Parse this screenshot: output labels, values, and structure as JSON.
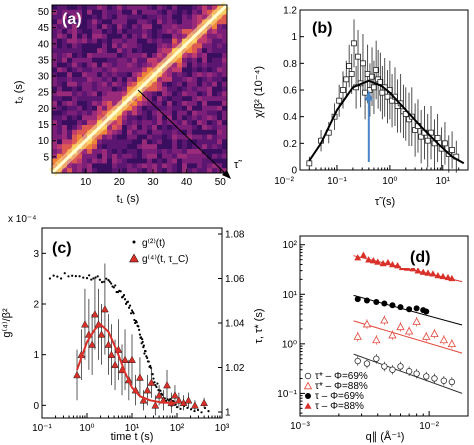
{
  "chart_data": [
    {
      "panel": "(a)",
      "type": "heatmap",
      "xlabel": "t₁ (s)",
      "ylabel": "t₂ (s)",
      "xlim": [
        0,
        52
      ],
      "ylim": [
        0,
        52
      ],
      "xticks": [
        10,
        20,
        30,
        40,
        50
      ],
      "yticks": [
        5,
        10,
        15,
        20,
        25,
        30,
        35,
        40,
        45,
        50
      ],
      "arrow_label": "τ̃",
      "colors": {
        "low": "#2a0a52",
        "mid": "#b02478",
        "high": "#f3c23a",
        "diag": "#ffffc8"
      }
    },
    {
      "panel": "(b)",
      "type": "scatter",
      "xscale": "log",
      "xlim": [
        0.02,
        30
      ],
      "ylim": [
        0,
        1.2
      ],
      "xlabel": "τ̃ (s)",
      "ylabel": "χ/β² (10⁻⁴)",
      "xtick_labels": [
        "10⁻²",
        "10⁻¹",
        "10⁰",
        "10¹"
      ],
      "yticks": [
        "0",
        "0.2",
        "0.4",
        "0.6",
        "0.8",
        "1",
        "1.2"
      ],
      "points": [
        [
          0.03,
          0.05,
          0.05
        ],
        [
          0.05,
          0.22,
          0.08
        ],
        [
          0.07,
          0.28,
          0.08
        ],
        [
          0.09,
          0.4,
          0.1
        ],
        [
          0.11,
          0.52,
          0.12
        ],
        [
          0.13,
          0.6,
          0.14
        ],
        [
          0.15,
          0.68,
          0.14
        ],
        [
          0.17,
          0.78,
          0.16
        ],
        [
          0.19,
          0.72,
          0.15
        ],
        [
          0.21,
          0.95,
          0.18
        ],
        [
          0.23,
          0.62,
          0.16
        ],
        [
          0.25,
          0.85,
          0.2
        ],
        [
          0.28,
          0.65,
          0.18
        ],
        [
          0.31,
          0.8,
          0.22
        ],
        [
          0.34,
          0.58,
          0.2
        ],
        [
          0.38,
          0.72,
          0.22
        ],
        [
          0.42,
          0.6,
          0.2
        ],
        [
          0.46,
          0.7,
          0.22
        ],
        [
          0.5,
          0.62,
          0.2
        ],
        [
          0.55,
          0.75,
          0.22
        ],
        [
          0.6,
          0.68,
          0.22
        ],
        [
          0.66,
          0.66,
          0.22
        ],
        [
          0.72,
          0.58,
          0.2
        ],
        [
          0.8,
          0.62,
          0.22
        ],
        [
          0.9,
          0.55,
          0.2
        ],
        [
          1.0,
          0.6,
          0.22
        ],
        [
          1.1,
          0.52,
          0.2
        ],
        [
          1.25,
          0.55,
          0.22
        ],
        [
          1.4,
          0.48,
          0.2
        ],
        [
          1.6,
          0.5,
          0.22
        ],
        [
          1.8,
          0.44,
          0.2
        ],
        [
          2.0,
          0.42,
          0.2
        ],
        [
          2.3,
          0.38,
          0.2
        ],
        [
          2.6,
          0.4,
          0.22
        ],
        [
          3.0,
          0.3,
          0.2
        ],
        [
          3.4,
          0.33,
          0.2
        ],
        [
          3.9,
          0.25,
          0.2
        ],
        [
          4.5,
          0.28,
          0.2
        ],
        [
          5.2,
          0.22,
          0.2
        ],
        [
          6.0,
          0.28,
          0.2
        ],
        [
          7.0,
          0.2,
          0.18
        ],
        [
          8.0,
          0.24,
          0.18
        ],
        [
          9.5,
          0.16,
          0.16
        ],
        [
          11,
          0.2,
          0.16
        ],
        [
          13,
          0.12,
          0.14
        ],
        [
          15,
          0.15,
          0.14
        ],
        [
          18,
          0.1,
          0.12
        ]
      ],
      "fit_curve": [
        [
          0.03,
          0.07
        ],
        [
          0.05,
          0.2
        ],
        [
          0.1,
          0.45
        ],
        [
          0.2,
          0.62
        ],
        [
          0.4,
          0.67
        ],
        [
          0.7,
          0.63
        ],
        [
          1.0,
          0.58
        ],
        [
          2.0,
          0.45
        ],
        [
          4.0,
          0.32
        ],
        [
          8.0,
          0.2
        ],
        [
          15,
          0.1
        ],
        [
          25,
          0.05
        ]
      ],
      "marker_x": 0.4,
      "arrow_color": "#4a86c8"
    },
    {
      "panel": "(c)",
      "type": "scatter",
      "xscale": "log",
      "xlim": [
        0.1,
        1000
      ],
      "ylim_left": [
        -0.25,
        3.5
      ],
      "ylim_right": [
        1.0,
        1.08
      ],
      "xlabel": "time t (s)",
      "ylabel": "g⁽⁴⁾/β²",
      "left_multiplier": "x 10⁻⁴",
      "xtick_labels": [
        "10⁻¹",
        "10⁰",
        "10¹",
        "10²",
        "10³"
      ],
      "left_yticks": [
        "0",
        "1",
        "2",
        "3"
      ],
      "right_yticks": [
        "1",
        "1.02",
        "1.04",
        "1.06",
        "1.08"
      ],
      "legend": [
        "g⁽²⁾(t)",
        "g⁽⁴⁾(t, τ_C)"
      ],
      "g2_fit": [
        [
          0.15,
          1.0615
        ],
        [
          1.0,
          1.061
        ],
        [
          3.0,
          1.059
        ],
        [
          6.0,
          1.053
        ],
        [
          10,
          1.045
        ],
        [
          15,
          1.035
        ],
        [
          20,
          1.026
        ],
        [
          30,
          1.015
        ],
        [
          50,
          1.007
        ],
        [
          100,
          1.002
        ],
        [
          600,
          1.0
        ]
      ],
      "g4_points": [
        [
          0.6,
          0.6,
          0.5
        ],
        [
          0.75,
          1.0,
          0.5
        ],
        [
          0.9,
          1.6,
          0.7
        ],
        [
          1.1,
          1.4,
          0.7
        ],
        [
          1.3,
          1.2,
          0.6
        ],
        [
          1.5,
          1.8,
          0.7
        ],
        [
          1.8,
          1.6,
          0.7
        ],
        [
          2.1,
          1.4,
          0.6
        ],
        [
          2.5,
          1.9,
          0.9
        ],
        [
          3.0,
          1.2,
          0.6
        ],
        [
          3.5,
          1.0,
          0.6
        ],
        [
          4.2,
          0.8,
          0.5
        ],
        [
          5.0,
          1.1,
          0.6
        ],
        [
          6.0,
          0.7,
          0.5
        ],
        [
          7.0,
          0.9,
          0.6
        ],
        [
          8.5,
          0.5,
          0.4
        ],
        [
          10,
          0.9,
          0.5
        ],
        [
          12,
          0.3,
          0.3
        ],
        [
          15,
          0.55,
          0.4
        ],
        [
          18,
          0.1,
          0.2
        ],
        [
          22,
          0.3,
          0.3
        ],
        [
          27,
          0.45,
          0.3
        ],
        [
          33,
          0.0,
          0.2
        ],
        [
          40,
          0.2,
          0.2
        ],
        [
          50,
          0.1,
          0.2
        ],
        [
          60,
          0.4,
          0.3
        ],
        [
          75,
          0.05,
          0.2
        ],
        [
          90,
          0.2,
          0.2
        ],
        [
          110,
          0.1,
          0.15
        ],
        [
          140,
          0.05,
          0.15
        ],
        [
          180,
          0.1,
          0.15
        ],
        [
          250,
          0.0,
          0.1
        ],
        [
          400,
          0.05,
          0.1
        ]
      ],
      "g4_fit": [
        [
          0.6,
          0.7
        ],
        [
          1.0,
          1.25
        ],
        [
          1.5,
          1.5
        ],
        [
          2.0,
          1.6
        ],
        [
          3.0,
          1.45
        ],
        [
          4.5,
          1.1
        ],
        [
          7.0,
          0.65
        ],
        [
          10,
          0.35
        ],
        [
          15,
          0.18
        ],
        [
          25,
          0.1
        ],
        [
          50,
          0.05
        ],
        [
          100,
          0.05
        ]
      ],
      "colors": {
        "g4": "#d9302a"
      }
    },
    {
      "panel": "(d)",
      "type": "scatter",
      "xscale": "log",
      "yscale": "log",
      "xlim": [
        0.001,
        0.02
      ],
      "ylim": [
        0.035,
        150
      ],
      "xlabel": "q∥ (Å⁻¹)",
      "ylabel": "τ, τ* (s)",
      "xtick_labels": [
        "10⁻³",
        "10⁻²"
      ],
      "ytick_labels": [
        "10⁻¹",
        "10⁰",
        "10¹",
        "10²"
      ],
      "series": [
        {
          "name": "τ* – Φ=69%",
          "marker": "open-circle",
          "color": "#333333",
          "x": [
            0.0028,
            0.0033,
            0.0039,
            0.0045,
            0.0052,
            0.006,
            0.007,
            0.008,
            0.0095,
            0.011,
            0.013,
            0.015
          ],
          "y": [
            0.45,
            0.4,
            0.5,
            0.35,
            0.3,
            0.35,
            0.28,
            0.25,
            0.22,
            0.2,
            0.18,
            0.17
          ],
          "fit": [
            [
              0.0026,
              0.62
            ],
            [
              0.018,
              0.1
            ]
          ]
        },
        {
          "name": "τ* – Φ=88%",
          "marker": "open-triangle",
          "color": "#e0483c",
          "x": [
            0.0028,
            0.0033,
            0.0039,
            0.0045,
            0.0052,
            0.006,
            0.007,
            0.008,
            0.0095,
            0.011,
            0.013,
            0.015
          ],
          "y": [
            1.4,
            2.5,
            1.2,
            3.0,
            1.5,
            2.2,
            1.8,
            2.8,
            1.4,
            1.6,
            1.2,
            1.0
          ],
          "fit": [
            [
              0.0026,
              2.9
            ],
            [
              0.018,
              0.65
            ]
          ]
        },
        {
          "name": "τ – Φ=69%",
          "marker": "filled-circle",
          "color": "#000000",
          "x": [
            0.0028,
            0.0033,
            0.0039,
            0.0045,
            0.0052,
            0.006,
            0.007,
            0.008,
            0.009,
            0.0095
          ],
          "y": [
            8.0,
            7.5,
            7.0,
            6.5,
            6.0,
            5.5,
            5.0,
            5.2,
            4.8,
            4.5
          ],
          "fit": [
            [
              0.0026,
              9.5
            ],
            [
              0.018,
              2.4
            ]
          ]
        },
        {
          "name": "τ – Φ=88%",
          "marker": "filled-triangle",
          "color": "#d9302a",
          "x": [
            0.0028,
            0.0031,
            0.0034,
            0.0037,
            0.004,
            0.0044,
            0.0048,
            0.0052,
            0.0057,
            0.0062,
            0.0068,
            0.0075,
            0.0082,
            0.009,
            0.0098,
            0.0107,
            0.0117,
            0.0128,
            0.014,
            0.015
          ],
          "y": [
            55,
            62,
            50,
            48,
            45,
            42,
            44,
            40,
            38,
            35,
            34,
            33,
            30,
            28,
            27,
            26,
            24,
            23,
            22,
            21
          ],
          "fit": [
            [
              0.0026,
              60
            ],
            [
              0.018,
              18
            ]
          ]
        }
      ]
    }
  ]
}
